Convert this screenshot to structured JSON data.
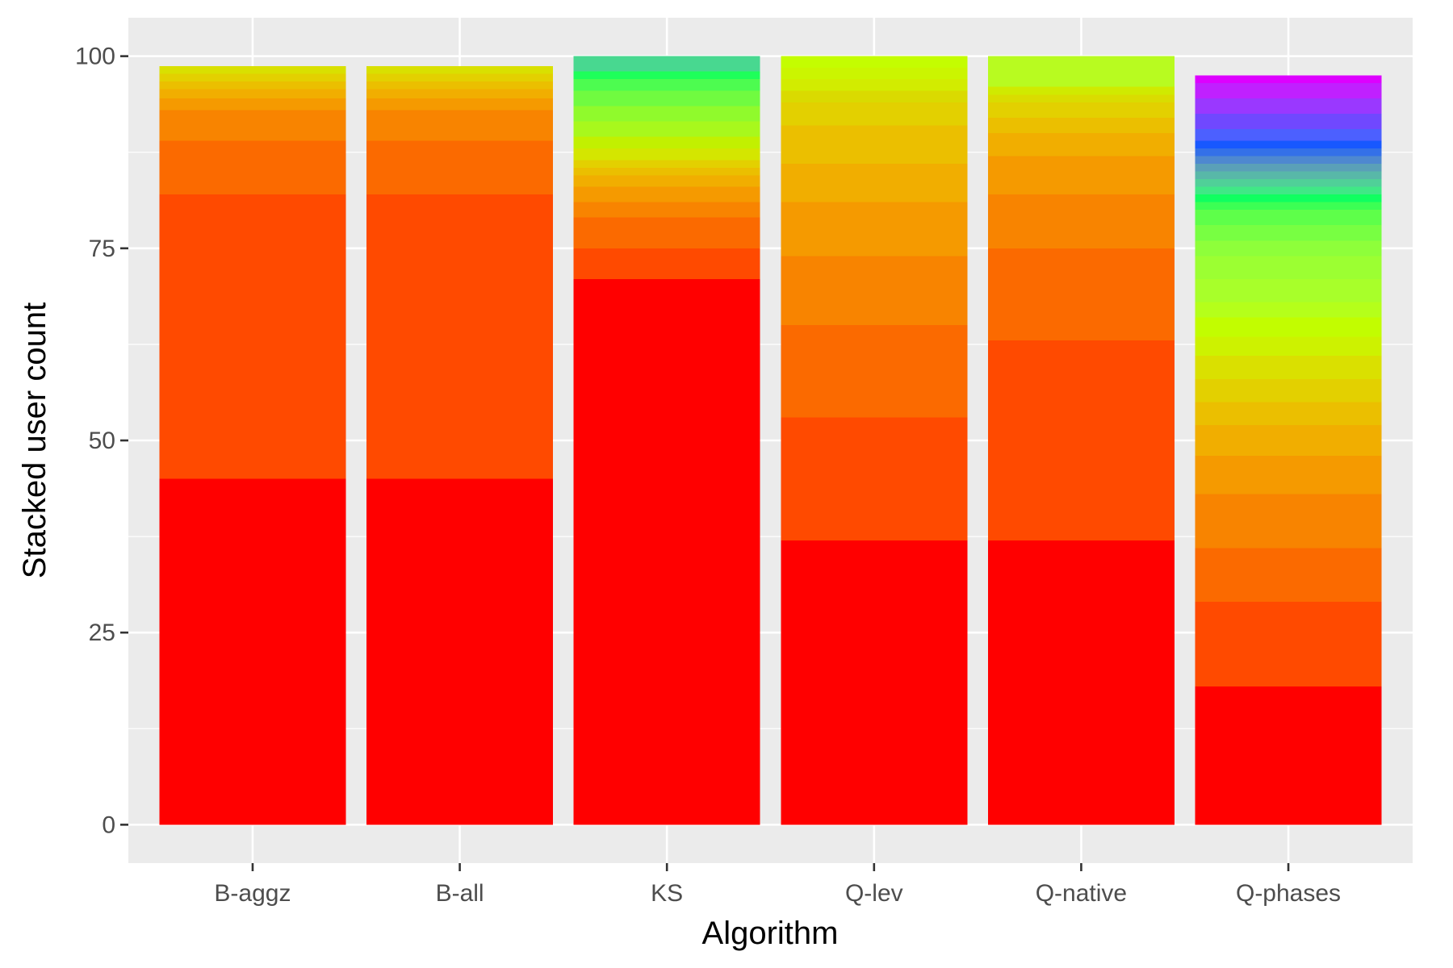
{
  "chart_data": {
    "type": "bar",
    "stacked": true,
    "xlabel": "Algorithm",
    "ylabel": "Stacked user count",
    "ylim": [
      -5,
      105
    ],
    "yticks": [
      0,
      25,
      50,
      75,
      100
    ],
    "grid": true,
    "legend": "none",
    "categories": [
      "B-aggz",
      "B-all",
      "KS",
      "Q-lev",
      "Q-native",
      "Q-phases"
    ],
    "stacks": [
      {
        "category": "B-aggz",
        "segments": [
          {
            "value": 45,
            "color": "#ff0000"
          },
          {
            "value": 37,
            "color": "#ff4a00"
          },
          {
            "value": 7,
            "color": "#fb6a00"
          },
          {
            "value": 4,
            "color": "#f88400"
          },
          {
            "value": 1.5,
            "color": "#f59a00"
          },
          {
            "value": 1.2,
            "color": "#f1ae00"
          },
          {
            "value": 1,
            "color": "#ebbf00"
          },
          {
            "value": 1,
            "color": "#e3d000"
          },
          {
            "value": 1,
            "color": "#d9e000"
          }
        ]
      },
      {
        "category": "B-all",
        "segments": [
          {
            "value": 45,
            "color": "#ff0000"
          },
          {
            "value": 37,
            "color": "#ff4a00"
          },
          {
            "value": 7,
            "color": "#fb6a00"
          },
          {
            "value": 4,
            "color": "#f88400"
          },
          {
            "value": 1.5,
            "color": "#f59a00"
          },
          {
            "value": 1.2,
            "color": "#f1ae00"
          },
          {
            "value": 1,
            "color": "#ebbf00"
          },
          {
            "value": 1,
            "color": "#e3d000"
          },
          {
            "value": 1,
            "color": "#d9e000"
          }
        ]
      },
      {
        "category": "KS",
        "segments": [
          {
            "value": 71,
            "color": "#ff0000"
          },
          {
            "value": 4,
            "color": "#ff4a00"
          },
          {
            "value": 4,
            "color": "#fb6a00"
          },
          {
            "value": 2,
            "color": "#f88400"
          },
          {
            "value": 2,
            "color": "#f59a00"
          },
          {
            "value": 1.5,
            "color": "#f1ae00"
          },
          {
            "value": 1,
            "color": "#ebbf00"
          },
          {
            "value": 1,
            "color": "#e3d000"
          },
          {
            "value": 1.5,
            "color": "#d4e600"
          },
          {
            "value": 1.5,
            "color": "#c2f000"
          },
          {
            "value": 2,
            "color": "#a8f81c"
          },
          {
            "value": 2,
            "color": "#90fa2c"
          },
          {
            "value": 2,
            "color": "#70fb40"
          },
          {
            "value": 1.5,
            "color": "#4dfc50"
          },
          {
            "value": 1,
            "color": "#1eff5a"
          },
          {
            "value": 2,
            "color": "#48d890"
          }
        ]
      },
      {
        "category": "Q-lev",
        "segments": [
          {
            "value": 37,
            "color": "#ff0000"
          },
          {
            "value": 16,
            "color": "#ff4a00"
          },
          {
            "value": 12,
            "color": "#fb6a00"
          },
          {
            "value": 9,
            "color": "#f88400"
          },
          {
            "value": 7,
            "color": "#f59a00"
          },
          {
            "value": 5,
            "color": "#f1ae00"
          },
          {
            "value": 5,
            "color": "#ebbf00"
          },
          {
            "value": 3,
            "color": "#e3d000"
          },
          {
            "value": 1.5,
            "color": "#dada00"
          },
          {
            "value": 1.5,
            "color": "#d2ec00"
          },
          {
            "value": 1.5,
            "color": "#cbf500"
          },
          {
            "value": 1.5,
            "color": "#c4fd00"
          }
        ]
      },
      {
        "category": "Q-native",
        "segments": [
          {
            "value": 37,
            "color": "#ff0000"
          },
          {
            "value": 26,
            "color": "#ff4a00"
          },
          {
            "value": 12,
            "color": "#fb6a00"
          },
          {
            "value": 7,
            "color": "#f88400"
          },
          {
            "value": 5,
            "color": "#f59a00"
          },
          {
            "value": 3,
            "color": "#f1ae00"
          },
          {
            "value": 2,
            "color": "#ebbf00"
          },
          {
            "value": 2,
            "color": "#e3d000"
          },
          {
            "value": 1,
            "color": "#dadc00"
          },
          {
            "value": 1,
            "color": "#d0ea00"
          },
          {
            "value": 4,
            "color": "#b8fb20"
          }
        ]
      },
      {
        "category": "Q-phases",
        "segments": [
          {
            "value": 18,
            "color": "#ff0000"
          },
          {
            "value": 11,
            "color": "#ff4a00"
          },
          {
            "value": 7,
            "color": "#fb6a00"
          },
          {
            "value": 7,
            "color": "#f88400"
          },
          {
            "value": 5,
            "color": "#f59a00"
          },
          {
            "value": 4,
            "color": "#f1ae00"
          },
          {
            "value": 3,
            "color": "#ebbf00"
          },
          {
            "value": 3,
            "color": "#e3d000"
          },
          {
            "value": 3,
            "color": "#dae000"
          },
          {
            "value": 2.5,
            "color": "#cdf200"
          },
          {
            "value": 2.5,
            "color": "#c2fd00"
          },
          {
            "value": 2,
            "color": "#b5ff1a"
          },
          {
            "value": 3,
            "color": "#a8ff2a"
          },
          {
            "value": 3,
            "color": "#9cff32"
          },
          {
            "value": 2,
            "color": "#8eff3a"
          },
          {
            "value": 2,
            "color": "#78ff42"
          },
          {
            "value": 2,
            "color": "#5eff4a"
          },
          {
            "value": 1,
            "color": "#3cff54"
          },
          {
            "value": 1,
            "color": "#10ff60"
          },
          {
            "value": 1,
            "color": "#40e886"
          },
          {
            "value": 1,
            "color": "#50d098"
          },
          {
            "value": 1,
            "color": "#58b8a8"
          },
          {
            "value": 1,
            "color": "#5aa0b8"
          },
          {
            "value": 1,
            "color": "#4e88d0"
          },
          {
            "value": 1,
            "color": "#3470e8"
          },
          {
            "value": 1,
            "color": "#1858ff"
          },
          {
            "value": 1.5,
            "color": "#4c60ff"
          },
          {
            "value": 2,
            "color": "#7048ff"
          },
          {
            "value": 2,
            "color": "#9a38ff"
          },
          {
            "value": 2,
            "color": "#c020ff"
          },
          {
            "value": 1,
            "color": "#dd00ff"
          }
        ]
      }
    ]
  }
}
